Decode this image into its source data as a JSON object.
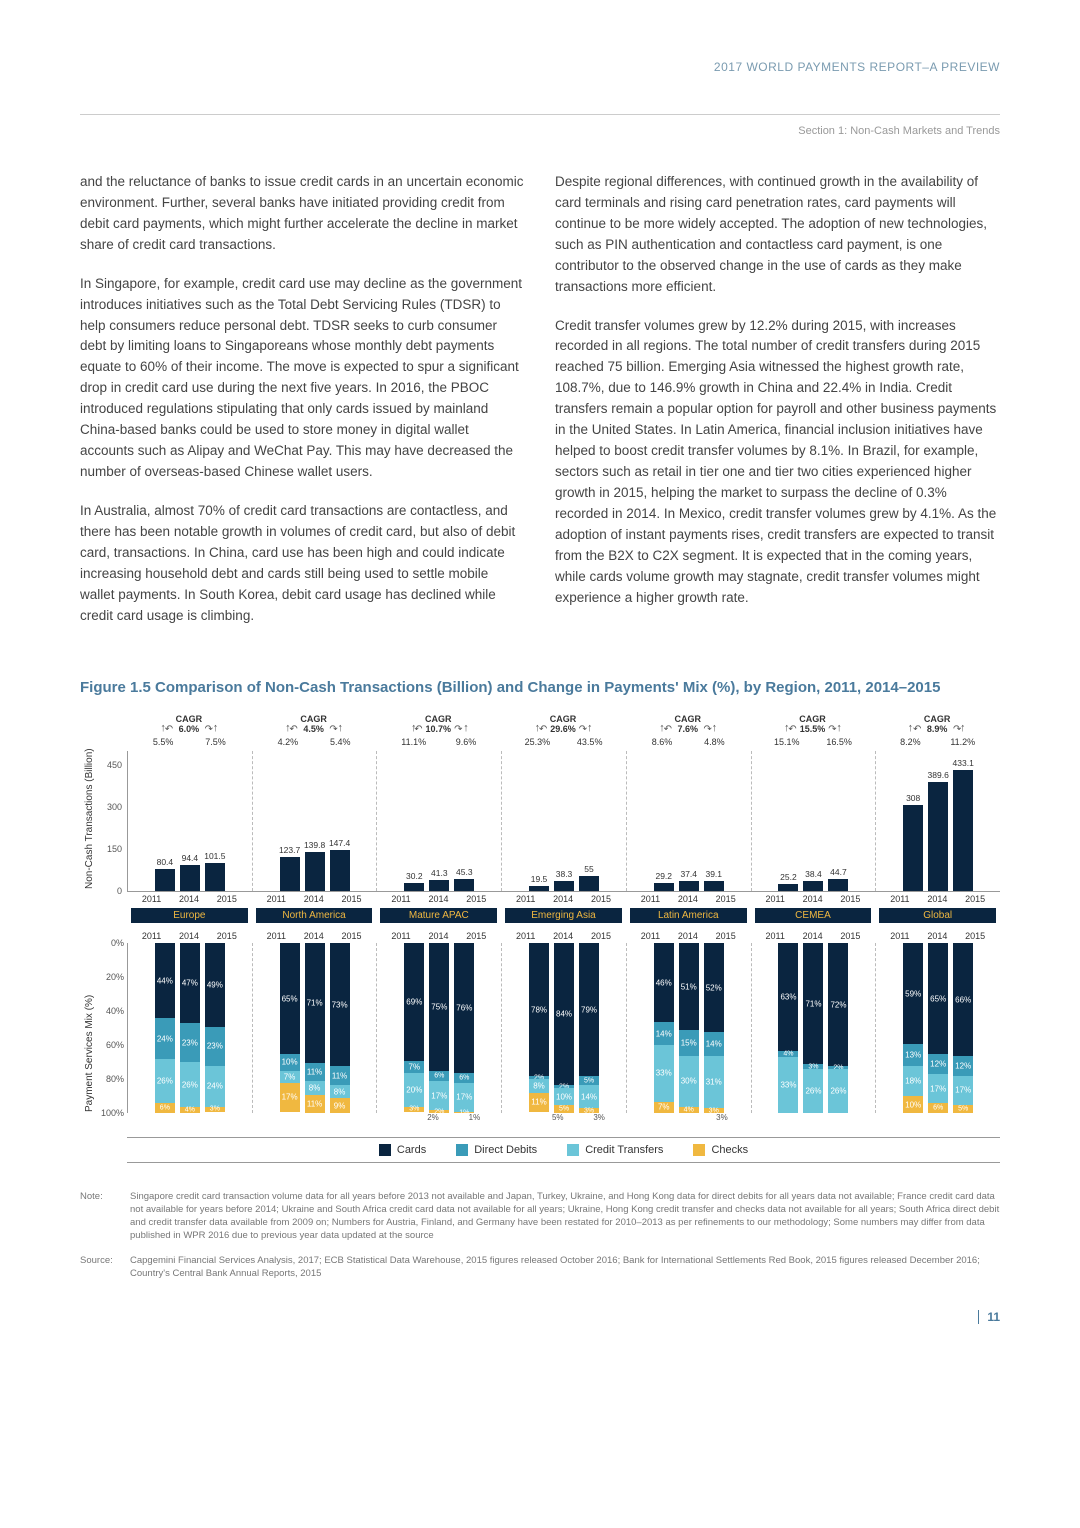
{
  "header": {
    "report_title": "2017 WORLD PAYMENTS REPORT–A PREVIEW",
    "section": "Section 1: Non-Cash Markets and Trends"
  },
  "body": {
    "left": [
      "and the reluctance of banks to issue credit cards in an uncertain economic environment. Further, several banks have initiated providing credit from debit card payments, which might further accelerate the decline in market share of credit card transactions.",
      "In Singapore, for example, credit card use may decline as the government introduces initiatives such as the Total Debt Servicing Rules (TDSR) to help consumers reduce personal debt. TDSR seeks to curb consumer debt by limiting loans to Singaporeans whose monthly debt payments equate to 60% of their income. The move is expected to spur a significant drop in credit card use during the next five years. In 2016, the PBOC introduced regulations stipulating that only cards issued by mainland China-based banks could be used to store money in digital wallet accounts such as Alipay and WeChat Pay. This may have decreased the number of overseas-based Chinese wallet users.",
      "In Australia, almost 70% of credit card transactions are contactless, and there has been notable growth in volumes of credit card, but also of debit card, transactions. In China, card use has been high and could indicate increasing household debt and cards still being used to settle mobile wallet payments. In South Korea, debit card usage has declined while credit card usage is climbing."
    ],
    "right": [
      "Despite regional differences, with continued growth in the availability of card terminals and rising card penetration rates, card payments will continue to be more widely accepted. The adoption of new technologies, such as PIN authentication and contactless card payment, is one contributor to the observed change in the use of cards as they make transactions more efficient.",
      "Credit transfer volumes grew by 12.2% during 2015, with increases recorded in all regions. The total number of credit transfers during 2015 reached 75 billion. Emerging Asia witnessed the highest growth rate, 108.7%, due to 146.9% growth in China and 22.4% in India. Credit transfers remain a popular option for payroll and other business payments in the United States. In Latin America, financial inclusion initiatives have helped to boost credit transfer volumes by 8.1%. In Brazil, for example, sectors such as retail in tier one and tier two cities experienced higher growth in 2015, helping the market to surpass the decline of 0.3% recorded in 2014. In Mexico, credit transfer volumes grew by 4.1%. As the adoption of instant payments rises, credit transfers are expected to transit from the B2X to C2X segment. It is expected that in the coming years, while cards volume growth may stagnate, credit transfer volumes might experience a higher growth rate."
    ]
  },
  "figure": {
    "title": "Figure 1.5 Comparison of Non-Cash Transactions (Billion) and Change in Payments' Mix (%), by Region, 2011, 2014–2015",
    "bar_chart": {
      "ylabel": "Non-Cash Transactions (Billion)",
      "ymax": 500,
      "yticks": [
        0,
        150,
        300,
        450
      ],
      "bar_color": "#0a2540",
      "cagr_label": "CAGR",
      "regions": [
        {
          "name": "Europe",
          "cagr": "6.0%",
          "growth": [
            "5.5%",
            "7.5%"
          ],
          "years": [
            "2011",
            "2014",
            "2015"
          ],
          "values": [
            80.4,
            94.4,
            101.5
          ]
        },
        {
          "name": "North America",
          "cagr": "4.5%",
          "growth": [
            "4.2%",
            "5.4%"
          ],
          "years": [
            "2011",
            "2014",
            "2015"
          ],
          "values": [
            123.7,
            139.8,
            147.4
          ]
        },
        {
          "name": "Mature APAC",
          "cagr": "10.7%",
          "growth": [
            "11.1%",
            "9.6%"
          ],
          "years": [
            "2011",
            "2014",
            "2015"
          ],
          "values": [
            30.2,
            41.3,
            45.3
          ]
        },
        {
          "name": "Emerging Asia",
          "cagr": "29.6%",
          "growth": [
            "25.3%",
            "43.5%"
          ],
          "years": [
            "2011",
            "2014",
            "2015"
          ],
          "values": [
            19.5,
            38.3,
            55.0
          ]
        },
        {
          "name": "Latin America",
          "cagr": "7.6%",
          "growth": [
            "8.6%",
            "4.8%"
          ],
          "years": [
            "2011",
            "2014",
            "2015"
          ],
          "values": [
            29.2,
            37.4,
            39.1
          ]
        },
        {
          "name": "CEMEA",
          "cagr": "15.5%",
          "growth": [
            "15.1%",
            "16.5%"
          ],
          "years": [
            "2011",
            "2014",
            "2015"
          ],
          "values": [
            25.2,
            38.4,
            44.7
          ]
        },
        {
          "name": "Global",
          "cagr": "8.9%",
          "growth": [
            "8.2%",
            "11.2%"
          ],
          "years": [
            "2011",
            "2014",
            "2015"
          ],
          "values": [
            308.0,
            389.6,
            433.1
          ]
        }
      ]
    },
    "stacked_chart": {
      "ylabel": "Payment Services Mix (%)",
      "yticks": [
        "0%",
        "20%",
        "40%",
        "60%",
        "80%",
        "100%"
      ],
      "colors": {
        "cards": "#0a2540",
        "direct_debits": "#3a9bb8",
        "credit_transfers": "#6bc5d8",
        "checks": "#f0b840"
      },
      "regions": [
        {
          "years": [
            "2011",
            "2014",
            "2015"
          ],
          "below": [
            "",
            "",
            ""
          ],
          "bars": [
            {
              "cards": 44,
              "dd": 24,
              "ct": 26,
              "checks": 6
            },
            {
              "cards": 47,
              "dd": 23,
              "ct": 26,
              "checks": 4
            },
            {
              "cards": 49,
              "dd": 23,
              "ct": 24,
              "checks": 3
            }
          ]
        },
        {
          "years": [
            "2011",
            "2014",
            "2015"
          ],
          "below": [
            "",
            "",
            ""
          ],
          "bars": [
            {
              "cards": 65,
              "dd": 10,
              "ct": 7,
              "checks": 17
            },
            {
              "cards": 71,
              "dd": 11,
              "ct": 8,
              "checks": 11
            },
            {
              "cards": 73,
              "dd": 11,
              "ct": 8,
              "checks": 9
            }
          ]
        },
        {
          "years": [
            "2011",
            "2014",
            "2015"
          ],
          "below": [
            "",
            "2%",
            "1%"
          ],
          "bars": [
            {
              "cards": 69,
              "dd": 7,
              "ct": 20,
              "checks": 3
            },
            {
              "cards": 75,
              "dd": 6,
              "ct": 17,
              "checks": 2
            },
            {
              "cards": 76,
              "dd": 6,
              "ct": 17,
              "checks": 1
            }
          ]
        },
        {
          "years": [
            "2011",
            "2014",
            "2015"
          ],
          "below": [
            "",
            "5%",
            "3%"
          ],
          "bars": [
            {
              "cards": 78,
              "dd": 2,
              "ct": 8,
              "checks": 11
            },
            {
              "cards": 84,
              "dd": 2,
              "ct": 10,
              "checks": 5
            },
            {
              "cards": 79,
              "dd": 5,
              "ct": 14,
              "checks": 3
            }
          ]
        },
        {
          "years": [
            "2011",
            "2014",
            "2015"
          ],
          "below": [
            "",
            "",
            "3%"
          ],
          "bars": [
            {
              "cards": 46,
              "dd": 14,
              "ct": 33,
              "checks": 7
            },
            {
              "cards": 51,
              "dd": 15,
              "ct": 30,
              "checks": 4
            },
            {
              "cards": 52,
              "dd": 14,
              "ct": 31,
              "checks": 3
            }
          ]
        },
        {
          "years": [
            "2011",
            "2014",
            "2015"
          ],
          "below": [
            "",
            "",
            ""
          ],
          "bars": [
            {
              "cards": 63,
              "dd": 4,
              "ct": 33,
              "checks": 0
            },
            {
              "cards": 71,
              "dd": 3,
              "ct": 26,
              "checks": 0
            },
            {
              "cards": 72,
              "dd": 2,
              "ct": 26,
              "checks": 0
            }
          ]
        },
        {
          "years": [
            "2011",
            "2014",
            "2015"
          ],
          "below": [
            "",
            "",
            ""
          ],
          "bars": [
            {
              "cards": 59,
              "dd": 13,
              "ct": 18,
              "checks": 10
            },
            {
              "cards": 65,
              "dd": 12,
              "ct": 17,
              "checks": 6
            },
            {
              "cards": 66,
              "dd": 12,
              "ct": 17,
              "checks": 5
            }
          ]
        }
      ]
    },
    "legend": [
      {
        "label": "Cards",
        "color": "#0a2540"
      },
      {
        "label": "Direct Debits",
        "color": "#3a9bb8"
      },
      {
        "label": "Credit Transfers",
        "color": "#6bc5d8"
      },
      {
        "label": "Checks",
        "color": "#f0b840"
      }
    ]
  },
  "notes": {
    "note_label": "Note:",
    "note_text": "Singapore credit card transaction volume data for all years before 2013 not available and Japan, Turkey, Ukraine, and Hong Kong data for direct debits for all years data not available; France credit card data not available for years before 2014; Ukraine and South Africa credit card data not available for all years; Ukraine, Hong Kong credit transfer and checks data not available for all years; South Africa direct debit and credit transfer data available from 2009 on; Numbers for Austria, Finland, and Germany have been restated for 2010–2013 as per refinements to our methodology; Some numbers may differ from data published in WPR 2016 due to previous year data updated at the source",
    "source_label": "Source:",
    "source_text": "Capgemini Financial Services Analysis, 2017; ECB Statistical Data Warehouse, 2015 figures released October 2016; Bank for International Settlements Red Book, 2015 figures released December 2016; Country's Central Bank Annual Reports, 2015"
  },
  "page_number": "11"
}
